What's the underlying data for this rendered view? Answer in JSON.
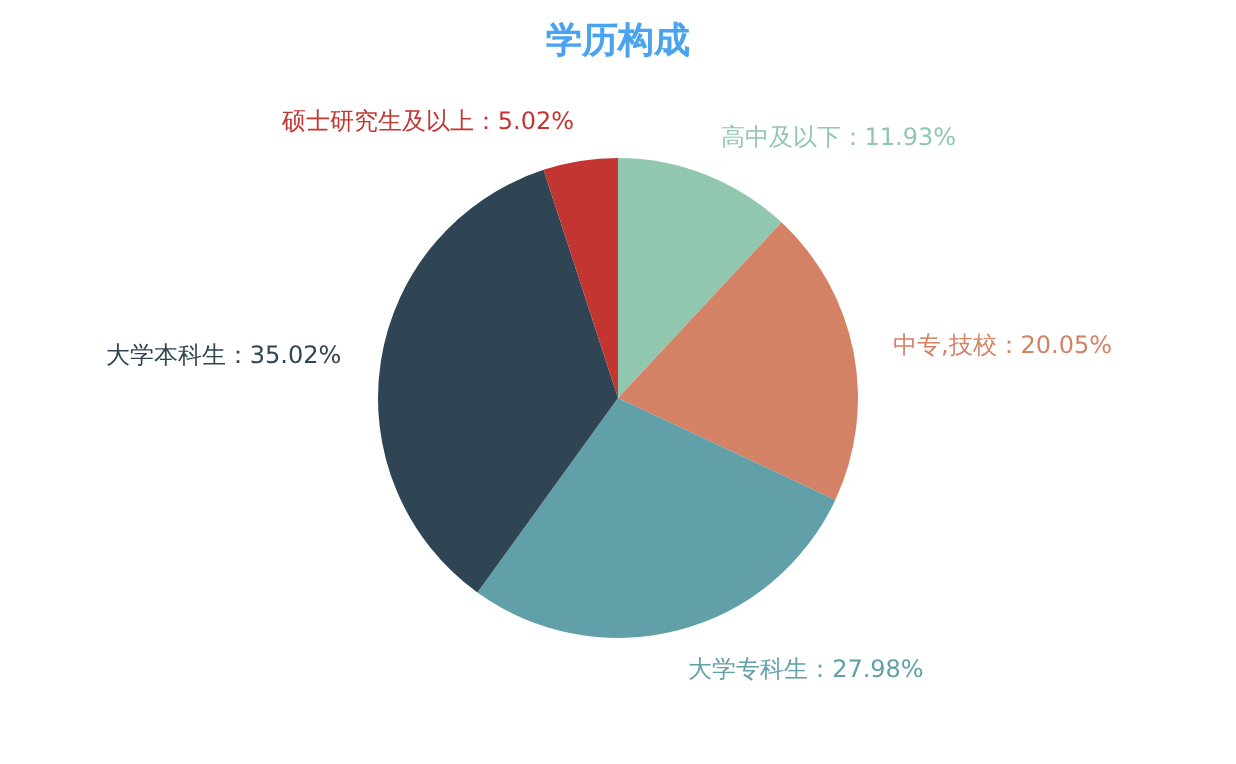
{
  "chart_data": {
    "type": "pie",
    "title": "学历构成",
    "categories": [
      "高中及以下",
      "中专,技校",
      "大学专科生",
      "大学本科生",
      "硕士研究生及以上"
    ],
    "values": [
      11.93,
      20.05,
      27.98,
      35.02,
      5.02
    ],
    "value_labels": [
      "：11.93%",
      "：20.05%",
      "：27.98%",
      "：35.02%",
      "：5.02%"
    ],
    "colors": [
      "#91c7ae",
      "#d48265",
      "#61a0a8",
      "#2f4554",
      "#c23531"
    ],
    "legend": false
  }
}
